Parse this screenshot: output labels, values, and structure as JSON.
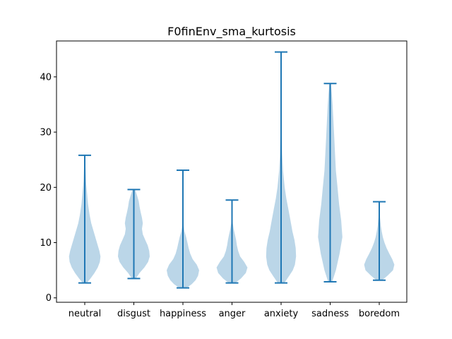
{
  "chart_data": {
    "type": "violin",
    "title": "F0finEnv_sma_kurtosis",
    "xlabel": "",
    "ylabel": "",
    "ylim": [
      -0.8,
      46.5
    ],
    "yticks": [
      0,
      10,
      20,
      30,
      40
    ],
    "grid": false,
    "colors": {
      "body": "#1f77b4",
      "body_opacity": 0.3,
      "lines": "#1f77b4"
    },
    "categories": [
      "neutral",
      "disgust",
      "happiness",
      "anger",
      "anxiety",
      "sadness",
      "boredom"
    ],
    "violins": [
      {
        "name": "neutral",
        "min": 2.7,
        "max": 25.8,
        "density": [
          [
            2.7,
            0.12
          ],
          [
            3.5,
            0.35
          ],
          [
            4.5,
            0.6
          ],
          [
            5.5,
            0.8
          ],
          [
            6.5,
            0.93
          ],
          [
            7.5,
            0.97
          ],
          [
            8.5,
            0.9
          ],
          [
            9.5,
            0.8
          ],
          [
            10.5,
            0.7
          ],
          [
            11.5,
            0.6
          ],
          [
            12.5,
            0.5
          ],
          [
            13.5,
            0.4
          ],
          [
            15,
            0.3
          ],
          [
            17,
            0.2
          ],
          [
            19,
            0.14
          ],
          [
            21,
            0.08
          ],
          [
            23,
            0.05
          ],
          [
            25.8,
            0.02
          ]
        ]
      },
      {
        "name": "disgust",
        "min": 3.5,
        "max": 19.6,
        "density": [
          [
            3.5,
            0.12
          ],
          [
            4.5,
            0.35
          ],
          [
            5.5,
            0.65
          ],
          [
            6.5,
            0.88
          ],
          [
            7.5,
            0.98
          ],
          [
            8.5,
            0.95
          ],
          [
            9.5,
            0.85
          ],
          [
            10.5,
            0.7
          ],
          [
            11.5,
            0.55
          ],
          [
            12.5,
            0.5
          ],
          [
            13.5,
            0.55
          ],
          [
            14.5,
            0.5
          ],
          [
            15.5,
            0.42
          ],
          [
            16.5,
            0.35
          ],
          [
            17.5,
            0.3
          ],
          [
            18.5,
            0.2
          ],
          [
            19.6,
            0.08
          ]
        ]
      },
      {
        "name": "happiness",
        "min": 1.8,
        "max": 23.1,
        "density": [
          [
            1.8,
            0.22
          ],
          [
            2.5,
            0.55
          ],
          [
            3.2,
            0.78
          ],
          [
            4.0,
            0.93
          ],
          [
            5.0,
            1.0
          ],
          [
            6.0,
            0.85
          ],
          [
            7.0,
            0.6
          ],
          [
            8.0,
            0.45
          ],
          [
            9.0,
            0.35
          ],
          [
            10.0,
            0.28
          ],
          [
            11.0,
            0.2
          ],
          [
            12,
            0.1
          ],
          [
            13,
            0.05
          ],
          [
            15,
            0.03
          ],
          [
            18,
            0.02
          ],
          [
            23.1,
            0.01
          ]
        ]
      },
      {
        "name": "anger",
        "min": 2.7,
        "max": 17.7,
        "density": [
          [
            2.7,
            0.2
          ],
          [
            3.5,
            0.55
          ],
          [
            4.5,
            0.85
          ],
          [
            5.5,
            0.95
          ],
          [
            6.5,
            0.75
          ],
          [
            7.5,
            0.5
          ],
          [
            8.5,
            0.38
          ],
          [
            9.5,
            0.3
          ],
          [
            10.5,
            0.25
          ],
          [
            11.5,
            0.18
          ],
          [
            12.5,
            0.1
          ],
          [
            13.5,
            0.05
          ],
          [
            15,
            0.03
          ],
          [
            17.7,
            0.02
          ]
        ]
      },
      {
        "name": "anxiety",
        "min": 2.7,
        "max": 44.5,
        "density": [
          [
            2.7,
            0.2
          ],
          [
            4,
            0.5
          ],
          [
            5,
            0.72
          ],
          [
            6,
            0.85
          ],
          [
            7.5,
            0.92
          ],
          [
            9,
            0.9
          ],
          [
            10.5,
            0.82
          ],
          [
            12,
            0.7
          ],
          [
            14,
            0.58
          ],
          [
            16,
            0.45
          ],
          [
            18,
            0.32
          ],
          [
            20,
            0.22
          ],
          [
            23,
            0.12
          ],
          [
            26,
            0.07
          ],
          [
            30,
            0.04
          ],
          [
            35,
            0.02
          ],
          [
            44.5,
            0.01
          ]
        ]
      },
      {
        "name": "sadness",
        "min": 2.9,
        "max": 38.8,
        "density": [
          [
            2.9,
            0.12
          ],
          [
            5,
            0.35
          ],
          [
            8,
            0.58
          ],
          [
            11,
            0.75
          ],
          [
            14,
            0.68
          ],
          [
            17,
            0.55
          ],
          [
            20,
            0.45
          ],
          [
            23,
            0.35
          ],
          [
            26,
            0.3
          ],
          [
            29,
            0.25
          ],
          [
            32,
            0.2
          ],
          [
            35,
            0.15
          ],
          [
            37,
            0.1
          ],
          [
            38.8,
            0.05
          ]
        ]
      },
      {
        "name": "boredom",
        "min": 3.2,
        "max": 17.4,
        "density": [
          [
            3.2,
            0.18
          ],
          [
            4.0,
            0.5
          ],
          [
            5.0,
            0.85
          ],
          [
            6.0,
            0.93
          ],
          [
            7.0,
            0.8
          ],
          [
            8.0,
            0.62
          ],
          [
            9.0,
            0.45
          ],
          [
            10.0,
            0.32
          ],
          [
            11.0,
            0.22
          ],
          [
            12.0,
            0.15
          ],
          [
            13.0,
            0.1
          ],
          [
            14.5,
            0.05
          ],
          [
            17.4,
            0.02
          ]
        ]
      }
    ]
  }
}
